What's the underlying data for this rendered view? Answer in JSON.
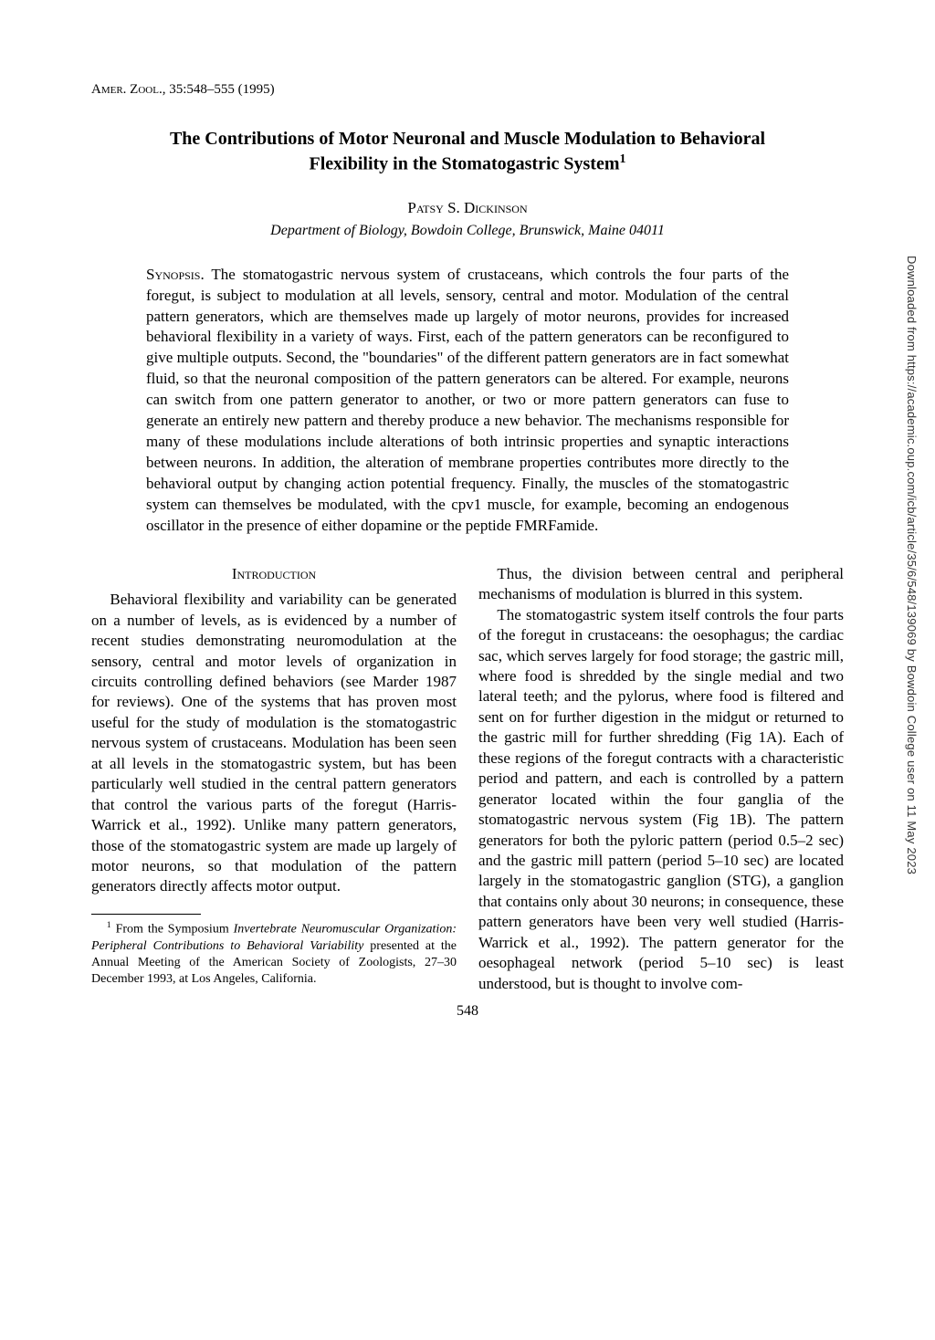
{
  "journal": {
    "abbrev": "Amer. Zool.",
    "citation": ", 35:548–555 (1995)"
  },
  "title": "The Contributions of Motor Neuronal and Muscle Modulation to Behavioral Flexibility in the Stomatogastric System",
  "title_footmark": "1",
  "author": "Patsy S. Dickinson",
  "affiliation": "Department of Biology, Bowdoin College, Brunswick, Maine 04011",
  "synopsis_label": "Synopsis.",
  "synopsis_body": "   The stomatogastric nervous system of crustaceans, which controls the four parts of the foregut, is subject to modulation at all levels, sensory, central and motor. Modulation of the central pattern generators, which are themselves made up largely of motor neurons, provides for increased behavioral flexibility in a variety of ways. First, each of the pattern generators can be reconfigured to give multiple outputs. Second, the \"boundaries\" of the different pattern generators are in fact somewhat fluid, so that the neuronal composition of the pattern generators can be altered. For example, neurons can switch from one pattern generator to another, or two or more pattern generators can fuse to generate an entirely new pattern and thereby produce a new behavior. The mechanisms responsible for many of these modulations include alterations of both intrinsic properties and synaptic interactions between neurons. In addition, the alteration of membrane properties contributes more directly to the behavioral output by changing action potential frequency. Finally, the muscles of the stomatogastric system can themselves be modulated, with the cpv1 muscle, for example, becoming an endogenous oscillator in the presence of either dopamine or the peptide FMRFamide.",
  "section_heading": "Introduction",
  "col1_para1": "Behavioral flexibility and variability can be generated on a number of levels, as is evidenced by a number of recent studies demonstrating neuromodulation at the sensory, central and motor levels of organization in circuits controlling defined behaviors (see Marder 1987 for reviews). One of the systems that has proven most useful for the study of modulation is the stomatogastric nervous system of crustaceans. Modulation has been seen at all levels in the stomatogastric system, but has been particularly well studied in the central pattern generators that control the various parts of the foregut (Harris-Warrick et al., 1992). Unlike many pattern generators, those of the stomatogastric system are made up largely of motor neurons, so that modulation of the pattern generators directly affects motor output.",
  "footnote_mark": "1",
  "footnote_text_a": " From the Symposium ",
  "footnote_text_italic": "Invertebrate Neuromuscular Organization: Peripheral Contributions to Behavioral Variability",
  "footnote_text_b": " presented at the Annual Meeting of the American Society of Zoologists, 27–30 December 1993, at Los Angeles, California.",
  "col2_para1": "Thus, the division between central and peripheral mechanisms of modulation is blurred in this system.",
  "col2_para2": "The stomatogastric system itself controls the four parts of the foregut in crustaceans: the oesophagus; the cardiac sac, which serves largely for food storage; the gastric mill, where food is shredded by the single medial and two lateral teeth; and the pylorus, where food is filtered and sent on for further digestion in the midgut or returned to the gastric mill for further shredding (Fig 1A). Each of these regions of the foregut contracts with a characteristic period and pattern, and each is controlled by a pattern generator located within the four ganglia of the stomatogastric nervous system (Fig 1B). The pattern generators for both the pyloric pattern (period 0.5–2 sec) and the gastric mill pattern (period 5–10 sec) are located largely in the stomatogastric ganglion (STG), a ganglion that contains only about 30 neurons; in consequence, these pattern generators have been very well studied (Harris-Warrick et al., 1992). The pattern generator for the oesophageal network (period 5–10 sec) is least understood, but is thought to involve com-",
  "page_number": "548",
  "side_note": "Downloaded from https://academic.oup.com/icb/article/35/6/548/139069 by Bowdoin College user on 11 May 2023"
}
